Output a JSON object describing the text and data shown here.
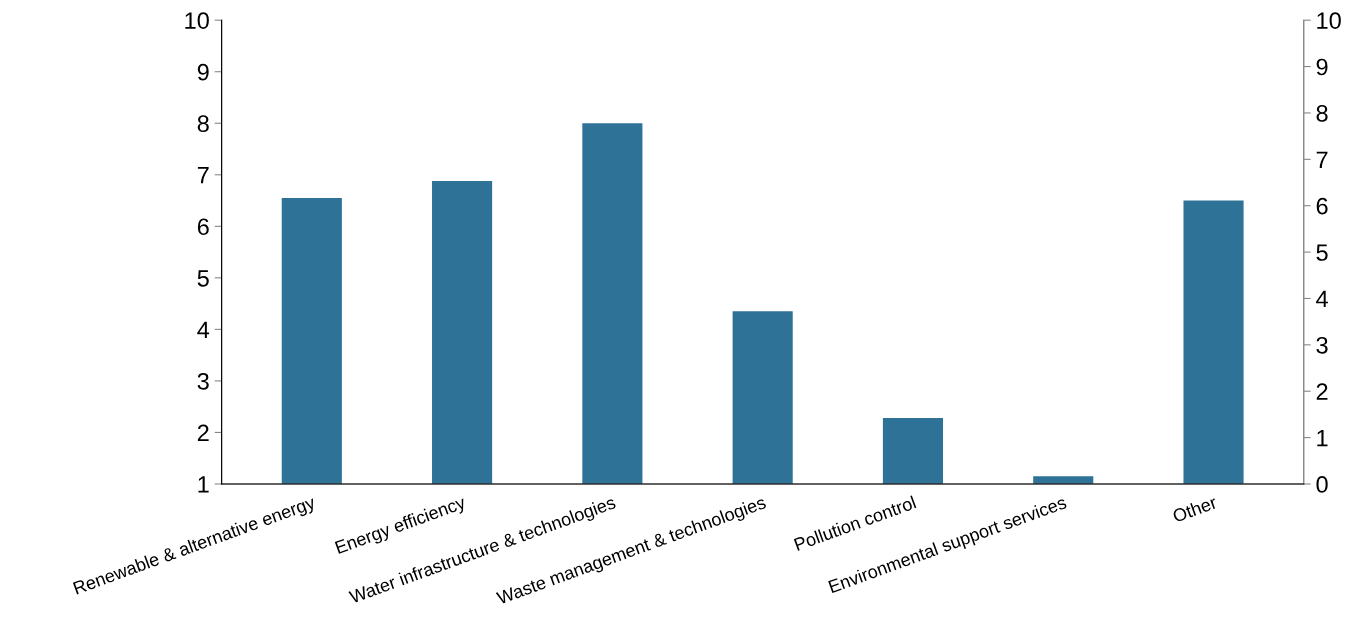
{
  "chart_data": {
    "type": "bar",
    "categories": [
      "Renewable & alternative energy",
      "Energy efficiency",
      "Water infrastructure & technologies",
      "Waste management & technologies",
      "Pollution control",
      "Environmental support services",
      "Other"
    ],
    "values": [
      6.55,
      6.88,
      8.0,
      4.35,
      2.28,
      1.15,
      6.5
    ],
    "color": "#2e7298",
    "ylim": [
      1,
      10
    ],
    "yticks": [
      1,
      2,
      3,
      4,
      5,
      6,
      7,
      8,
      9,
      10
    ],
    "y2lim": [
      0,
      10
    ],
    "y2ticks": [
      0,
      1,
      2,
      3,
      4,
      5,
      6,
      7,
      8,
      9,
      10
    ],
    "grid": false,
    "legend": false
  }
}
